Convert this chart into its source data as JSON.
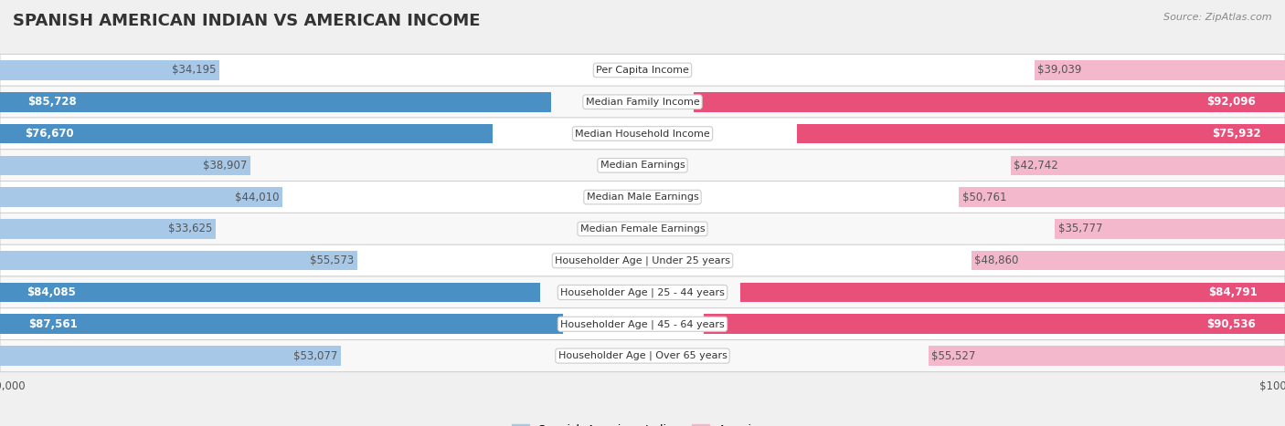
{
  "title": "SPANISH AMERICAN INDIAN VS AMERICAN INCOME",
  "source": "Source: ZipAtlas.com",
  "categories": [
    "Per Capita Income",
    "Median Family Income",
    "Median Household Income",
    "Median Earnings",
    "Median Male Earnings",
    "Median Female Earnings",
    "Householder Age | Under 25 years",
    "Householder Age | 25 - 44 years",
    "Householder Age | 45 - 64 years",
    "Householder Age | Over 65 years"
  ],
  "left_values": [
    34195,
    85728,
    76670,
    38907,
    44010,
    33625,
    55573,
    84085,
    87561,
    53077
  ],
  "right_values": [
    39039,
    92096,
    75932,
    42742,
    50761,
    35777,
    48860,
    84791,
    90536,
    55527
  ],
  "left_labels": [
    "$34,195",
    "$85,728",
    "$76,670",
    "$38,907",
    "$44,010",
    "$33,625",
    "$55,573",
    "$84,085",
    "$87,561",
    "$53,077"
  ],
  "right_labels": [
    "$39,039",
    "$92,096",
    "$75,932",
    "$42,742",
    "$50,761",
    "$35,777",
    "$48,860",
    "$84,791",
    "$90,536",
    "$55,527"
  ],
  "max_value": 100000,
  "left_color_light": "#a8c8e8",
  "left_color_dark": "#4a90c4",
  "right_color_light": "#f4b8cc",
  "right_color_dark": "#e8507a",
  "left_legend": "Spanish American Indian",
  "right_legend": "American",
  "bg_color": "#f0f0f0",
  "row_bg_even": "#f8f8f8",
  "row_bg_odd": "#ffffff",
  "title_fontsize": 13,
  "label_fontsize": 8.5,
  "category_fontsize": 8.0,
  "bar_height": 0.62,
  "inside_threshold": 60000
}
